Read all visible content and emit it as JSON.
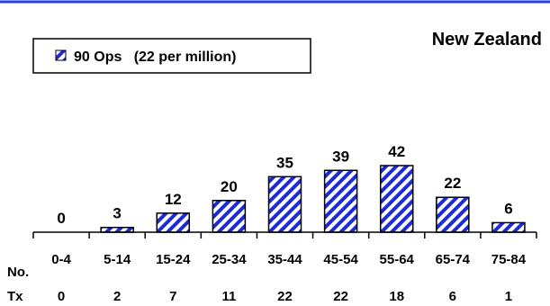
{
  "chart_data": {
    "type": "bar",
    "title": "New Zealand",
    "legend": {
      "label": "90 Ops   (22 per million)",
      "placement": "top-left"
    },
    "categories": [
      "0-4",
      "5-14",
      "15-24",
      "25-34",
      "35-44",
      "45-54",
      "55-64",
      "65-74",
      "75-84"
    ],
    "series": [
      {
        "name": "90 Ops   (22 per million)",
        "values": [
          0,
          3,
          12,
          20,
          35,
          39,
          42,
          22,
          6
        ]
      }
    ],
    "ylim": [
      0,
      45
    ],
    "grid": false,
    "table": {
      "label_line1": "No.",
      "label_line2": "Tx",
      "values": [
        0,
        2,
        7,
        11,
        22,
        22,
        18,
        6,
        1
      ]
    },
    "colors": {
      "rule": "#1f3df0",
      "bar_stripe": "#1d2bd6"
    }
  }
}
